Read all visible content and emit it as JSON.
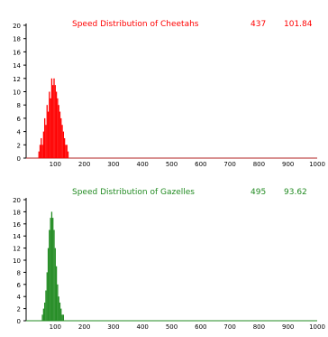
{
  "chart_data": [
    {
      "type": "bar",
      "title": "Speed Distribution of Cheetahs",
      "stat_count": "437",
      "stat_mean": "101.84",
      "color": "#ff0000",
      "title_color": "#ff0000",
      "axis_line_color": "#b22222",
      "xlim": [
        0,
        1000
      ],
      "ylim": [
        0,
        20
      ],
      "x_ticks": [
        100,
        200,
        300,
        400,
        500,
        600,
        700,
        800,
        900,
        1000
      ],
      "x_tick_labels": [
        "100",
        "200",
        "300",
        "400",
        "500",
        "600",
        "700",
        "800",
        "900",
        "1000"
      ],
      "y_ticks": [
        0,
        2,
        4,
        6,
        8,
        10,
        12,
        14,
        16,
        18,
        20
      ],
      "y_tick_labels": [
        "0",
        "2",
        "4",
        "6",
        "8",
        "10",
        "12",
        "14",
        "16",
        "18",
        "20"
      ],
      "x": [
        44,
        48,
        52,
        56,
        60,
        64,
        68,
        72,
        76,
        80,
        84,
        88,
        92,
        96,
        100,
        104,
        108,
        112,
        116,
        120,
        124,
        128,
        132,
        136,
        140,
        144
      ],
      "values": [
        1,
        2,
        3,
        2,
        4,
        6,
        5,
        8,
        7,
        10,
        9,
        12,
        11,
        12,
        11,
        10,
        9,
        8,
        7,
        6,
        5,
        4,
        3,
        2,
        2,
        1
      ]
    },
    {
      "type": "bar",
      "title": "Speed Distribution of Gazelles",
      "stat_count": "495",
      "stat_mean": "93.62",
      "color": "#228b22",
      "title_color": "#228b22",
      "axis_line_color": "#228b22",
      "xlim": [
        0,
        1000
      ],
      "ylim": [
        0,
        20
      ],
      "x_ticks": [
        100,
        200,
        300,
        400,
        500,
        600,
        700,
        800,
        900,
        1000
      ],
      "x_tick_labels": [
        "100",
        "200",
        "300",
        "400",
        "500",
        "600",
        "700",
        "800",
        "900",
        "1000"
      ],
      "y_ticks": [
        0,
        2,
        4,
        6,
        8,
        10,
        12,
        14,
        16,
        18,
        20
      ],
      "y_tick_labels": [
        "0",
        "2",
        "4",
        "6",
        "8",
        "10",
        "12",
        "14",
        "16",
        "18",
        "20"
      ],
      "x": [
        56,
        60,
        64,
        68,
        72,
        76,
        80,
        84,
        88,
        92,
        96,
        100,
        104,
        108,
        112,
        116,
        120,
        124,
        128
      ],
      "values": [
        1,
        2,
        3,
        5,
        8,
        12,
        15,
        17,
        18,
        17,
        15,
        12,
        9,
        6,
        4,
        3,
        2,
        1,
        1
      ]
    }
  ]
}
